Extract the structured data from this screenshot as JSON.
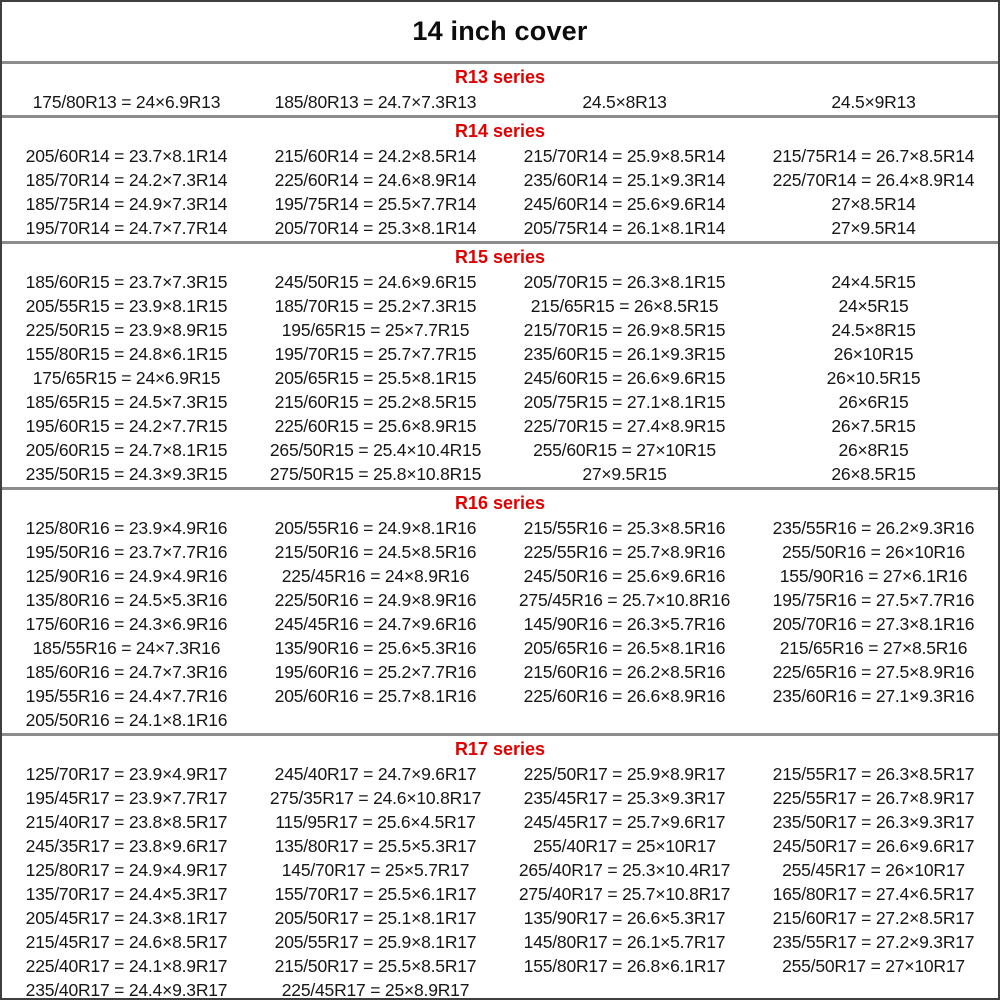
{
  "title": "14 inch cover",
  "colors": {
    "series_header_red": "#e00000",
    "body_text": "#161616",
    "outer_border": "#3f3f3f",
    "separator_gray": "#8c8c8c"
  },
  "sections": [
    {
      "label": "R13 series",
      "rows": [
        [
          "175/80R13 = 24×6.9R13",
          "185/80R13 = 24.7×7.3R13",
          "24.5×8R13",
          "24.5×9R13"
        ]
      ]
    },
    {
      "label": "R14 series",
      "rows": [
        [
          "205/60R14 = 23.7×8.1R14",
          "215/60R14 = 24.2×8.5R14",
          "215/70R14 = 25.9×8.5R14",
          "215/75R14 = 26.7×8.5R14"
        ],
        [
          "185/70R14 = 24.2×7.3R14",
          "225/60R14 = 24.6×8.9R14",
          "235/60R14 = 25.1×9.3R14",
          "225/70R14 = 26.4×8.9R14"
        ],
        [
          "185/75R14 = 24.9×7.3R14",
          "195/75R14 = 25.5×7.7R14",
          "245/60R14 = 25.6×9.6R14",
          "27×8.5R14"
        ],
        [
          "195/70R14 = 24.7×7.7R14",
          "205/70R14 = 25.3×8.1R14",
          "205/75R14 = 26.1×8.1R14",
          "27×9.5R14"
        ]
      ]
    },
    {
      "label": "R15 series",
      "rows": [
        [
          "185/60R15 = 23.7×7.3R15",
          "245/50R15 = 24.6×9.6R15",
          "205/70R15 = 26.3×8.1R15",
          "24×4.5R15"
        ],
        [
          "205/55R15 = 23.9×8.1R15",
          "185/70R15 = 25.2×7.3R15",
          "215/65R15 = 26×8.5R15",
          "24×5R15"
        ],
        [
          "225/50R15 = 23.9×8.9R15",
          "195/65R15 = 25×7.7R15",
          "215/70R15 = 26.9×8.5R15",
          "24.5×8R15"
        ],
        [
          "155/80R15 = 24.8×6.1R15",
          "195/70R15 = 25.7×7.7R15",
          "235/60R15 = 26.1×9.3R15",
          "26×10R15"
        ],
        [
          "175/65R15 = 24×6.9R15",
          "205/65R15 = 25.5×8.1R15",
          "245/60R15 = 26.6×9.6R15",
          "26×10.5R15"
        ],
        [
          "185/65R15 = 24.5×7.3R15",
          "215/60R15 = 25.2×8.5R15",
          "205/75R15 = 27.1×8.1R15",
          "26×6R15"
        ],
        [
          "195/60R15 = 24.2×7.7R15",
          "225/60R15 = 25.6×8.9R15",
          "225/70R15 = 27.4×8.9R15",
          "26×7.5R15"
        ],
        [
          "205/60R15 = 24.7×8.1R15",
          "265/50R15 = 25.4×10.4R15",
          "255/60R15 = 27×10R15",
          "26×8R15"
        ],
        [
          "235/50R15 = 24.3×9.3R15",
          "275/50R15 = 25.8×10.8R15",
          "27×9.5R15",
          "26×8.5R15"
        ]
      ]
    },
    {
      "label": "R16 series",
      "rows": [
        [
          "125/80R16 = 23.9×4.9R16",
          "205/55R16 = 24.9×8.1R16",
          "215/55R16 = 25.3×8.5R16",
          "235/55R16 = 26.2×9.3R16"
        ],
        [
          "195/50R16 = 23.7×7.7R16",
          "215/50R16 = 24.5×8.5R16",
          "225/55R16 = 25.7×8.9R16",
          "255/50R16 = 26×10R16"
        ],
        [
          "125/90R16 = 24.9×4.9R16",
          "225/45R16 = 24×8.9R16",
          "245/50R16 = 25.6×9.6R16",
          "155/90R16 = 27×6.1R16"
        ],
        [
          "135/80R16 = 24.5×5.3R16",
          "225/50R16 = 24.9×8.9R16",
          "275/45R16 = 25.7×10.8R16",
          "195/75R16 = 27.5×7.7R16"
        ],
        [
          "175/60R16 = 24.3×6.9R16",
          "245/45R16 = 24.7×9.6R16",
          "145/90R16 = 26.3×5.7R16",
          "205/70R16 = 27.3×8.1R16"
        ],
        [
          "185/55R16 = 24×7.3R16",
          "135/90R16 = 25.6×5.3R16",
          "205/65R16 = 26.5×8.1R16",
          "215/65R16 = 27×8.5R16"
        ],
        [
          "185/60R16 = 24.7×7.3R16",
          "195/60R16 = 25.2×7.7R16",
          "215/60R16 = 26.2×8.5R16",
          "225/65R16 = 27.5×8.9R16"
        ],
        [
          "195/55R16 = 24.4×7.7R16",
          "205/60R16 = 25.7×8.1R16",
          "225/60R16 = 26.6×8.9R16",
          "235/60R16 = 27.1×9.3R16"
        ],
        [
          "205/50R16 = 24.1×8.1R16",
          "",
          "",
          ""
        ]
      ]
    },
    {
      "label": "R17 series",
      "rows": [
        [
          "125/70R17 = 23.9×4.9R17",
          "245/40R17 = 24.7×9.6R17",
          "225/50R17 = 25.9×8.9R17",
          "215/55R17 = 26.3×8.5R17"
        ],
        [
          "195/45R17 = 23.9×7.7R17",
          "275/35R17 = 24.6×10.8R17",
          "235/45R17 = 25.3×9.3R17",
          "225/55R17 = 26.7×8.9R17"
        ],
        [
          "215/40R17 = 23.8×8.5R17",
          "115/95R17 = 25.6×4.5R17",
          "245/45R17 = 25.7×9.6R17",
          "235/50R17 = 26.3×9.3R17"
        ],
        [
          "245/35R17 = 23.8×9.6R17",
          "135/80R17 = 25.5×5.3R17",
          "255/40R17 = 25×10R17",
          "245/50R17 = 26.6×9.6R17"
        ],
        [
          "125/80R17 = 24.9×4.9R17",
          "145/70R17 = 25×5.7R17",
          "265/40R17 = 25.3×10.4R17",
          "255/45R17 = 26×10R17"
        ],
        [
          "135/70R17 = 24.4×5.3R17",
          "155/70R17 = 25.5×6.1R17",
          "275/40R17 = 25.7×10.8R17",
          "165/80R17 = 27.4×6.5R17"
        ],
        [
          "205/45R17 = 24.3×8.1R17",
          "205/50R17 = 25.1×8.1R17",
          "135/90R17 = 26.6×5.3R17",
          "215/60R17 = 27.2×8.5R17"
        ],
        [
          "215/45R17 = 24.6×8.5R17",
          "205/55R17 = 25.9×8.1R17",
          "145/80R17 = 26.1×5.7R17",
          "235/55R17 = 27.2×9.3R17"
        ],
        [
          "225/40R17 = 24.1×8.9R17",
          "215/50R17 = 25.5×8.5R17",
          "155/80R17 = 26.8×6.1R17",
          "255/50R17 = 27×10R17"
        ],
        [
          "235/40R17 = 24.4×9.3R17",
          "225/45R17 = 25×8.9R17",
          "",
          ""
        ]
      ]
    }
  ]
}
